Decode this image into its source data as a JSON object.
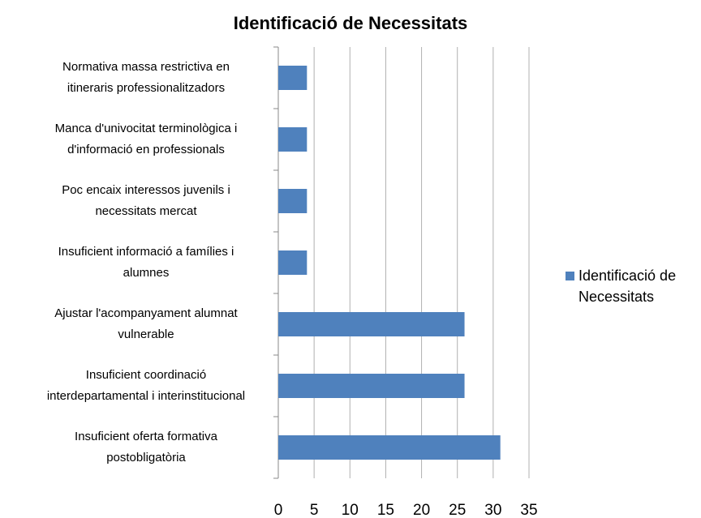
{
  "chart_data": {
    "type": "bar",
    "orientation": "horizontal",
    "title": "Identificació de Necessitats",
    "categories": [
      [
        "Normativa massa restrictiva en",
        "itineraris professionalitzadors"
      ],
      [
        "Manca d'univocitat terminològica i",
        "d'informació en professionals"
      ],
      [
        "Poc encaix interessos juvenils i",
        "necessitats mercat"
      ],
      [
        "Insuficient informació a famílies i",
        "alumnes"
      ],
      [
        "Ajustar l'acompanyament alumnat",
        "vulnerable"
      ],
      [
        "Insuficient coordinació",
        "interdepartamental i interinstitucional"
      ],
      [
        "Insuficient oferta formativa",
        "postobligatòria"
      ]
    ],
    "series": [
      {
        "name": "Identificació de Necessitats",
        "color": "#4f81bd",
        "values": [
          4,
          4,
          4,
          4,
          26,
          26,
          31
        ]
      }
    ],
    "xlim": [
      0,
      35
    ],
    "xticks": [
      0,
      5,
      10,
      15,
      20,
      25,
      30,
      35
    ],
    "grid": true,
    "legend": "right"
  }
}
